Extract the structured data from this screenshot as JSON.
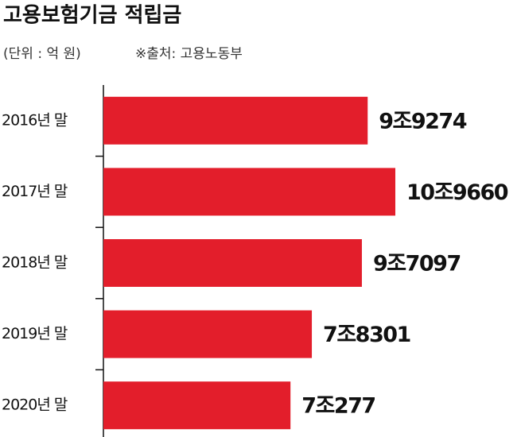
{
  "chart_data": {
    "type": "hbar",
    "title": "고용보험기금 적립금",
    "unit": "(단위 : 억 원)",
    "source": "※출처: 고용노동부",
    "categories": [
      "2016년 말",
      "2017년 말",
      "2018년 말",
      "2019년 말",
      "2020년 말"
    ],
    "values": [
      99274,
      109660,
      97097,
      78301,
      70277
    ],
    "value_labels": [
      "9조9274",
      "10조9660",
      "9조7097",
      "7조8301",
      "7조277"
    ],
    "color": "#e31e2b"
  }
}
